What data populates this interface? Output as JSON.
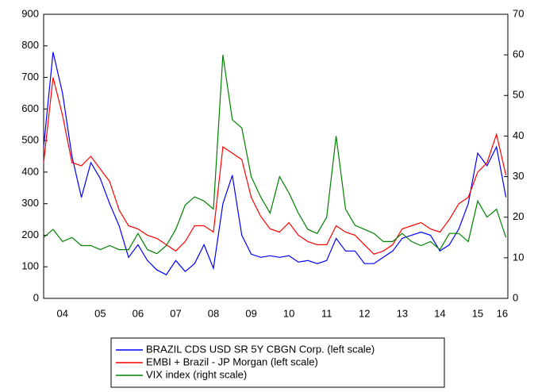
{
  "chart_data": {
    "type": "line",
    "x": [
      2004.0,
      2004.25,
      2004.5,
      2004.75,
      2005.0,
      2005.25,
      2005.5,
      2005.75,
      2006.0,
      2006.25,
      2006.5,
      2006.75,
      2007.0,
      2007.25,
      2007.5,
      2007.75,
      2008.0,
      2008.25,
      2008.5,
      2008.75,
      2009.0,
      2009.25,
      2009.5,
      2009.75,
      2010.0,
      2010.25,
      2010.5,
      2010.75,
      2011.0,
      2011.25,
      2011.5,
      2011.75,
      2012.0,
      2012.25,
      2012.5,
      2012.75,
      2013.0,
      2013.25,
      2013.5,
      2013.75,
      2014.0,
      2014.25,
      2014.5,
      2014.75,
      2015.0,
      2015.25,
      2015.5,
      2015.75,
      2016.0,
      2016.25
    ],
    "series": [
      {
        "name": "BRAZIL CDS USD SR 5Y CBGN Corp. (left scale)",
        "color": "#0000ff",
        "values": [
          480,
          780,
          650,
          450,
          320,
          430,
          380,
          300,
          230,
          130,
          170,
          120,
          90,
          75,
          120,
          85,
          110,
          170,
          95,
          300,
          390,
          200,
          140,
          130,
          135,
          130,
          135,
          115,
          120,
          110,
          120,
          190,
          150,
          150,
          110,
          110,
          130,
          150,
          190,
          200,
          210,
          200,
          150,
          170,
          220,
          300,
          460,
          420,
          480,
          320
        ]
      },
      {
        "name": "EMBI + Brazil - JP Morgan (left scale)",
        "color": "#ff0000",
        "values": [
          430,
          700,
          580,
          430,
          420,
          450,
          410,
          370,
          280,
          230,
          220,
          200,
          190,
          170,
          150,
          180,
          230,
          230,
          210,
          480,
          460,
          440,
          320,
          260,
          220,
          210,
          240,
          200,
          180,
          170,
          170,
          230,
          210,
          200,
          170,
          140,
          150,
          170,
          220,
          230,
          240,
          220,
          210,
          250,
          300,
          320,
          400,
          430,
          520,
          390
        ]
      },
      {
        "name": "VIX index (right scale)",
        "color": "#008000",
        "axis": "y2",
        "values": [
          15,
          17,
          14,
          15,
          13,
          13,
          12,
          13,
          12,
          12,
          16,
          12,
          11,
          13,
          17,
          23,
          25,
          24,
          22,
          60,
          44,
          42,
          30,
          25,
          21,
          30,
          26,
          21,
          17,
          16,
          20,
          40,
          22,
          18,
          17,
          16,
          14,
          14,
          16,
          14,
          13,
          14,
          12,
          16,
          16,
          14,
          24,
          20,
          22,
          15
        ]
      }
    ],
    "xlim": [
      2004.0,
      2016.3
    ],
    "xticks": [
      {
        "value": 2004.5,
        "label": "04"
      },
      {
        "value": 2005.5,
        "label": "05"
      },
      {
        "value": 2006.5,
        "label": "06"
      },
      {
        "value": 2007.5,
        "label": "07"
      },
      {
        "value": 2008.5,
        "label": "08"
      },
      {
        "value": 2009.5,
        "label": "09"
      },
      {
        "value": 2010.5,
        "label": "10"
      },
      {
        "value": 2011.5,
        "label": "11"
      },
      {
        "value": 2012.5,
        "label": "12"
      },
      {
        "value": 2013.5,
        "label": "13"
      },
      {
        "value": 2014.5,
        "label": "14"
      },
      {
        "value": 2015.5,
        "label": "15"
      },
      {
        "value": 2016.15,
        "label": "16"
      }
    ],
    "ylim": [
      0,
      900
    ],
    "yticks": [
      0,
      100,
      200,
      300,
      400,
      500,
      600,
      700,
      800,
      900
    ],
    "y2lim": [
      0,
      70
    ],
    "y2ticks": [
      0,
      10,
      20,
      30,
      40,
      50,
      60,
      70
    ]
  }
}
